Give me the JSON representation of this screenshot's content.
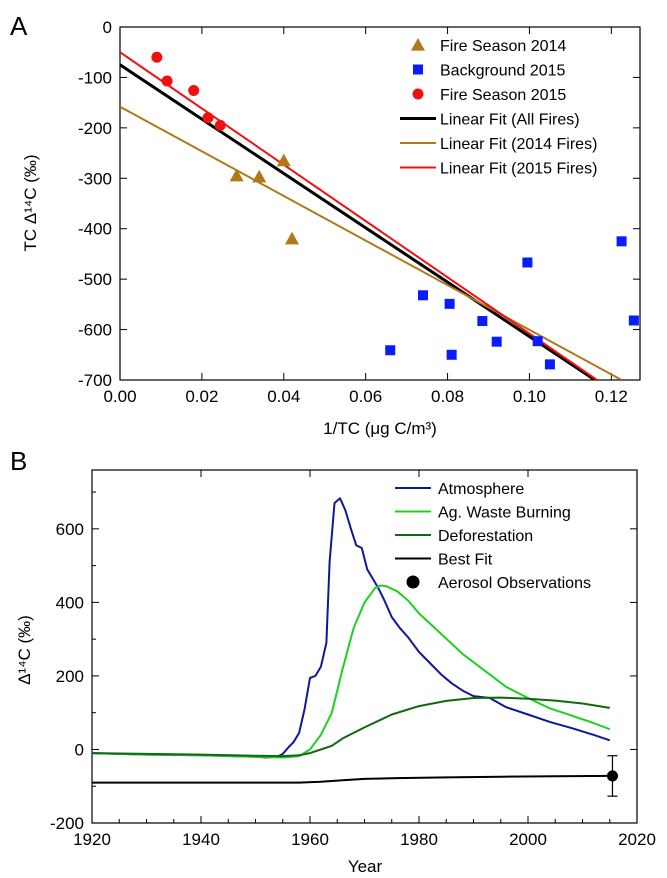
{
  "panels": {
    "a": {
      "letter": "A"
    },
    "b": {
      "letter": "B"
    }
  },
  "chart_data": [
    {
      "type": "scatter",
      "panel": "A",
      "xlabel": "1/TC (μg C/m³)",
      "ylabel": "TC Δ¹⁴C (‰)",
      "xlim": [
        0.0,
        0.127
      ],
      "ylim": [
        -700,
        0
      ],
      "xticks": [
        0.0,
        0.02,
        0.04,
        0.06,
        0.08,
        0.1,
        0.12
      ],
      "xtick_labels": [
        "0.00",
        "0.02",
        "0.04",
        "0.06",
        "0.08",
        "0.10",
        "0.12"
      ],
      "yticks": [
        0,
        -100,
        -200,
        -300,
        -400,
        -500,
        -600,
        -700
      ],
      "ytick_labels": [
        "0",
        "-100",
        "-200",
        "-300",
        "-400",
        "-500",
        "-600",
        "-700"
      ],
      "grid": false,
      "legend_position": "top-right",
      "series": [
        {
          "name": "Fire Season 2014",
          "kind": "points",
          "marker": "triangle",
          "color": "#b07818",
          "points": [
            [
              0.0285,
              -295
            ],
            [
              0.034,
              -297
            ],
            [
              0.04,
              -265
            ],
            [
              0.042,
              -420
            ]
          ]
        },
        {
          "name": "Background 2015",
          "kind": "points",
          "marker": "square",
          "color": "#0a1cff",
          "points": [
            [
              0.066,
              -641
            ],
            [
              0.074,
              -532
            ],
            [
              0.0805,
              -549
            ],
            [
              0.081,
              -650
            ],
            [
              0.0885,
              -583
            ],
            [
              0.092,
              -624
            ],
            [
              0.0995,
              -467
            ],
            [
              0.102,
              -623
            ],
            [
              0.105,
              -669
            ],
            [
              0.1225,
              -425
            ],
            [
              0.1255,
              -582
            ]
          ]
        },
        {
          "name": "Fire Season 2015",
          "kind": "points",
          "marker": "circle",
          "color": "#f01010",
          "points": [
            [
              0.009,
              -60
            ],
            [
              0.0115,
              -107
            ],
            [
              0.018,
              -126
            ],
            [
              0.0215,
              -180
            ],
            [
              0.0245,
              -195
            ]
          ]
        },
        {
          "name": "Linear Fit (All Fires)",
          "kind": "line",
          "color": "#000000",
          "width": 3,
          "points": [
            [
              0.0,
              -75
            ],
            [
              0.116,
              -700
            ]
          ]
        },
        {
          "name": "Linear Fit (2014 Fires)",
          "kind": "line",
          "color": "#b07818",
          "width": 2,
          "points": [
            [
              0.0,
              -158
            ],
            [
              0.1225,
              -700
            ]
          ]
        },
        {
          "name": "Linear Fit (2015 Fires)",
          "kind": "line",
          "color": "#f01010",
          "width": 2,
          "points": [
            [
              0.0,
              -50
            ],
            [
              0.1165,
              -700
            ]
          ]
        }
      ]
    },
    {
      "type": "line",
      "panel": "B",
      "xlabel": "Year",
      "ylabel": "Δ¹⁴C (‰)",
      "xlim": [
        1920,
        2020
      ],
      "ylim": [
        -200,
        760
      ],
      "xticks": [
        1920,
        1940,
        1960,
        1980,
        2000,
        2020
      ],
      "xtick_labels": [
        "1920",
        "1940",
        "1960",
        "1980",
        "2000",
        "2020"
      ],
      "yticks": [
        -200,
        0,
        200,
        400,
        600
      ],
      "ytick_labels": [
        "-200",
        "0",
        "200",
        "400",
        "600"
      ],
      "grid": false,
      "legend_position": "top-right",
      "series": [
        {
          "name": "Atmosphere",
          "kind": "line",
          "color": "#10189a",
          "width": 2,
          "points": [
            [
              1920,
              -10
            ],
            [
              1930,
              -14
            ],
            [
              1940,
              -16
            ],
            [
              1950,
              -20
            ],
            [
              1952,
              -22
            ],
            [
              1954,
              -20
            ],
            [
              1955,
              -12
            ],
            [
              1956,
              5
            ],
            [
              1957,
              20
            ],
            [
              1958,
              45
            ],
            [
              1959,
              110
            ],
            [
              1960,
              195
            ],
            [
              1961,
              200
            ],
            [
              1962,
              225
            ],
            [
              1963,
              290
            ],
            [
              1963.6,
              510
            ],
            [
              1964.5,
              670
            ],
            [
              1965.5,
              683
            ],
            [
              1966.5,
              650
            ],
            [
              1967.5,
              600
            ],
            [
              1968.5,
              555
            ],
            [
              1969.5,
              548
            ],
            [
              1970.5,
              490
            ],
            [
              1971.5,
              465
            ],
            [
              1972.5,
              440
            ],
            [
              1973.5,
              410
            ],
            [
              1975,
              360
            ],
            [
              1976.5,
              330
            ],
            [
              1978,
              305
            ],
            [
              1980,
              265
            ],
            [
              1982,
              235
            ],
            [
              1984,
              205
            ],
            [
              1986,
              180
            ],
            [
              1988,
              160
            ],
            [
              1990,
              145
            ],
            [
              1993,
              140
            ],
            [
              1996,
              115
            ],
            [
              2000,
              95
            ],
            [
              2004,
              75
            ],
            [
              2008,
              58
            ],
            [
              2012,
              40
            ],
            [
              2015,
              25
            ]
          ]
        },
        {
          "name": "Ag. Waste Burning",
          "kind": "line",
          "color": "#20d020",
          "width": 2,
          "points": [
            [
              1920,
              -10
            ],
            [
              1930,
              -14
            ],
            [
              1940,
              -16
            ],
            [
              1950,
              -20
            ],
            [
              1955,
              -22
            ],
            [
              1958,
              -18
            ],
            [
              1960,
              0
            ],
            [
              1962,
              40
            ],
            [
              1964,
              100
            ],
            [
              1966,
              220
            ],
            [
              1968,
              330
            ],
            [
              1970,
              400
            ],
            [
              1972,
              440
            ],
            [
              1973,
              446
            ],
            [
              1974,
              444
            ],
            [
              1976,
              430
            ],
            [
              1978,
              405
            ],
            [
              1980,
              370
            ],
            [
              1984,
              315
            ],
            [
              1988,
              260
            ],
            [
              1992,
              215
            ],
            [
              1996,
              170
            ],
            [
              2000,
              140
            ],
            [
              2004,
              112
            ],
            [
              2008,
              92
            ],
            [
              2012,
              72
            ],
            [
              2015,
              55
            ]
          ]
        },
        {
          "name": "Deforestation",
          "kind": "line",
          "color": "#106810",
          "width": 2,
          "points": [
            [
              1920,
              -10
            ],
            [
              1930,
              -12
            ],
            [
              1940,
              -14
            ],
            [
              1950,
              -17
            ],
            [
              1955,
              -18
            ],
            [
              1958,
              -16
            ],
            [
              1960,
              -10
            ],
            [
              1962,
              0
            ],
            [
              1964,
              10
            ],
            [
              1966,
              30
            ],
            [
              1970,
              60
            ],
            [
              1975,
              95
            ],
            [
              1980,
              118
            ],
            [
              1985,
              132
            ],
            [
              1990,
              140
            ],
            [
              1995,
              141
            ],
            [
              2000,
              138
            ],
            [
              2005,
              133
            ],
            [
              2010,
              125
            ],
            [
              2015,
              113
            ]
          ]
        },
        {
          "name": "Best Fit",
          "kind": "line",
          "color": "#000000",
          "width": 2,
          "points": [
            [
              1920,
              -90
            ],
            [
              1940,
              -90
            ],
            [
              1958,
              -90
            ],
            [
              1962,
              -88
            ],
            [
              1966,
              -84
            ],
            [
              1970,
              -80
            ],
            [
              1976,
              -78
            ],
            [
              1985,
              -76
            ],
            [
              1995,
              -74
            ],
            [
              2005,
              -73
            ],
            [
              2015,
              -72
            ]
          ]
        },
        {
          "name": "Aerosol Observations",
          "kind": "points",
          "marker": "circle",
          "color": "#000000",
          "points": [
            [
              2015.5,
              -72
            ]
          ],
          "error": [
            55
          ]
        }
      ]
    }
  ]
}
